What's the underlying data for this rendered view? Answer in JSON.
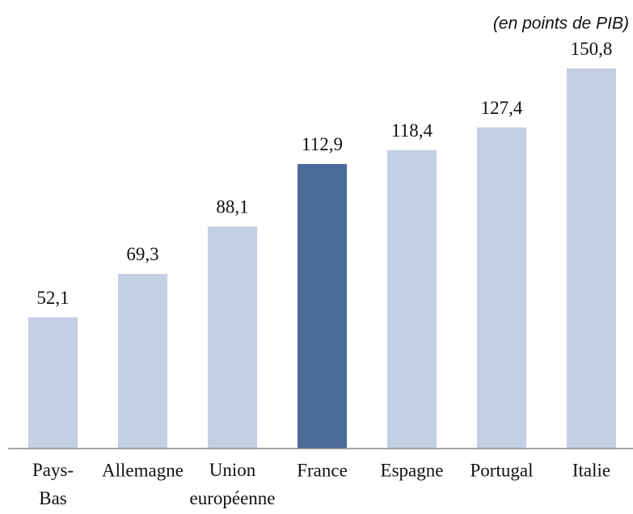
{
  "chart_data": {
    "type": "bar",
    "subtitle": "(en points de PIB)",
    "categories": [
      "Pays-Bas",
      "Allemagne",
      "Union européenne",
      "France",
      "Espagne",
      "Portugal",
      "Italie"
    ],
    "values": [
      52.1,
      69.3,
      88.1,
      112.9,
      118.4,
      127.4,
      150.8
    ],
    "value_labels": [
      "52,1",
      "69,3",
      "88,1",
      "112,9",
      "118,4",
      "127,4",
      "150,8"
    ],
    "colors": [
      "#c3cfe2",
      "#c3cfe2",
      "#c3cfe2",
      "#4a6a9a",
      "#c3cfe2",
      "#c3cfe2",
      "#c3cfe2"
    ],
    "ylim": [
      0,
      160
    ],
    "grid": false
  }
}
